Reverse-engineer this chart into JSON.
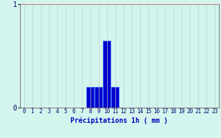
{
  "hours": [
    0,
    1,
    2,
    3,
    4,
    5,
    6,
    7,
    8,
    9,
    10,
    11,
    12,
    13,
    14,
    15,
    16,
    17,
    18,
    19,
    20,
    21,
    22,
    23
  ],
  "values": [
    0,
    0,
    0,
    0,
    0,
    0,
    0,
    0,
    0.2,
    0.2,
    0.65,
    0.2,
    0,
    0,
    0,
    0,
    0,
    0,
    0,
    0,
    0,
    0,
    0,
    0
  ],
  "bar_color": "#0000cc",
  "bar_edge_color": "#3366ff",
  "xlabel": "Précipitations 1h ( mm )",
  "xlabel_color": "#0000bb",
  "xlabel_fontsize": 7,
  "ylim": [
    0,
    1.0
  ],
  "yticks": [
    0,
    1
  ],
  "bg_color": "#d4f4ee",
  "grid_color_x": "#b8d4d0",
  "grid_color_y": "#d08080",
  "axis_color": "#808080",
  "tick_color": "#000066",
  "tick_fontsize": 5.5,
  "ytick_fontsize": 7
}
